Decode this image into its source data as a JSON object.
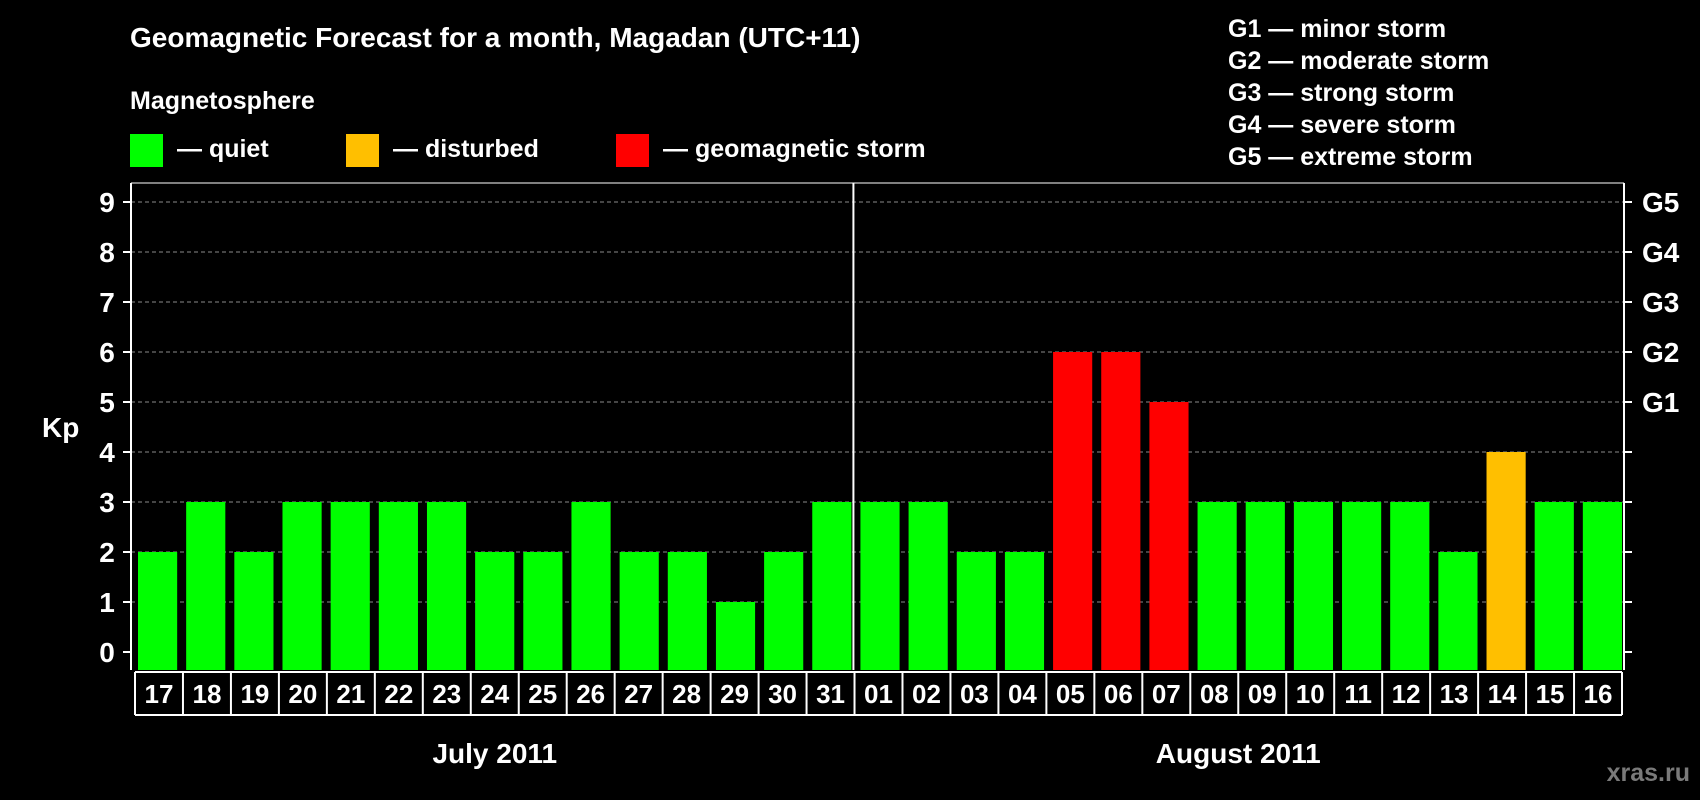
{
  "chart_data": {
    "type": "bar",
    "title": "Geomagnetic Forecast for a month, Magadan (UTC+11)",
    "legend_title": "Magnetosphere",
    "legend": [
      {
        "label": "— quiet",
        "color": "#00ff00"
      },
      {
        "label": "— disturbed",
        "color": "#ffbf00"
      },
      {
        "label": "— geomagnetic storm",
        "color": "#ff0000"
      }
    ],
    "storm_scale": [
      "G1 — minor storm",
      "G2 — moderate storm",
      "G3 — strong storm",
      "G4 — severe storm",
      "G5 — extreme storm"
    ],
    "ylabel": "Kp",
    "ylim": [
      0,
      9
    ],
    "yticks": [
      "0",
      "1",
      "2",
      "3",
      "4",
      "5",
      "6",
      "7",
      "8",
      "9"
    ],
    "right_axis_labels": [
      {
        "label": "G1",
        "kp": 5
      },
      {
        "label": "G2",
        "kp": 6
      },
      {
        "label": "G3",
        "kp": 7
      },
      {
        "label": "G4",
        "kp": 8
      },
      {
        "label": "G5",
        "kp": 9
      }
    ],
    "categories": [
      "17",
      "18",
      "19",
      "20",
      "21",
      "22",
      "23",
      "24",
      "25",
      "26",
      "27",
      "28",
      "29",
      "30",
      "31",
      "01",
      "02",
      "03",
      "04",
      "05",
      "06",
      "07",
      "08",
      "09",
      "10",
      "11",
      "12",
      "13",
      "14",
      "15",
      "16"
    ],
    "values": [
      2,
      3,
      2,
      3,
      3,
      3,
      3,
      2,
      2,
      3,
      2,
      2,
      1,
      2,
      3,
      3,
      3,
      2,
      2,
      6,
      6,
      5,
      3,
      3,
      3,
      3,
      3,
      2,
      4,
      3,
      3
    ],
    "months": [
      {
        "label": "July 2011",
        "first_index": 0,
        "last_index": 14
      },
      {
        "label": "August 2011",
        "first_index": 15,
        "last_index": 30
      }
    ],
    "colors": {
      "quiet": "#00ff00",
      "disturbed": "#ffbf00",
      "storm": "#ff0000"
    },
    "grid": true
  },
  "watermark": "xras.ru"
}
